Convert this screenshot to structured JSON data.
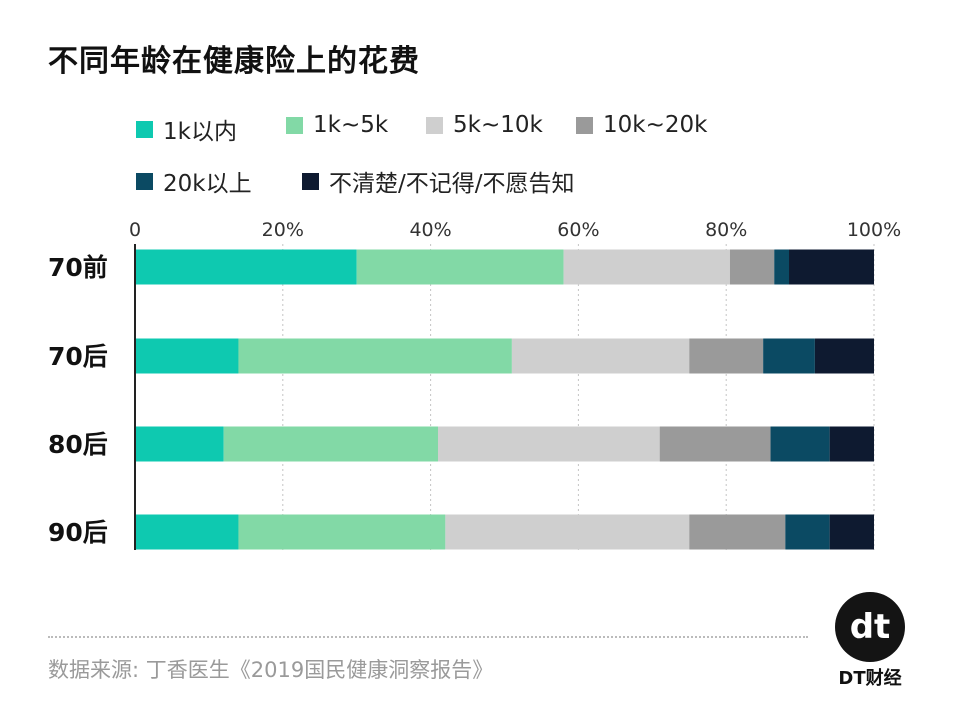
{
  "chart_data": {
    "type": "bar",
    "orientation": "horizontal",
    "stacked": true,
    "title": "不同年龄在健康险上的花费",
    "categories": [
      "70前",
      "70后",
      "80后",
      "90后"
    ],
    "xlim": [
      0,
      100
    ],
    "ticks": [
      0,
      20,
      40,
      60,
      80,
      100
    ],
    "tick_labels": [
      "0",
      "20%",
      "40%",
      "60%",
      "80%",
      "100%"
    ],
    "xlabel": "",
    "ylabel": "",
    "grid": true,
    "legend_position": "top",
    "series": [
      {
        "name": "1k以内",
        "color": "#0ec9b0",
        "values": [
          30,
          14,
          12,
          14
        ]
      },
      {
        "name": "1k~5k",
        "color": "#82d9a6",
        "values": [
          28,
          37,
          29,
          28
        ]
      },
      {
        "name": "5k~10k",
        "color": "#cfcfcf",
        "values": [
          22.5,
          24,
          30,
          33
        ]
      },
      {
        "name": "10k~20k",
        "color": "#9a9a9a",
        "values": [
          6,
          10,
          15,
          13
        ]
      },
      {
        "name": "20k以上",
        "color": "#0b4a63",
        "values": [
          2,
          7,
          8,
          6
        ]
      },
      {
        "name": "不清楚/不记得/不愿告知",
        "color": "#0e1a30",
        "values": [
          11.5,
          8,
          6,
          6
        ]
      }
    ]
  },
  "source": "数据来源: 丁香医生《2019国民健康洞察报告》",
  "logo": {
    "mark": "dt",
    "name": "DT财经"
  }
}
